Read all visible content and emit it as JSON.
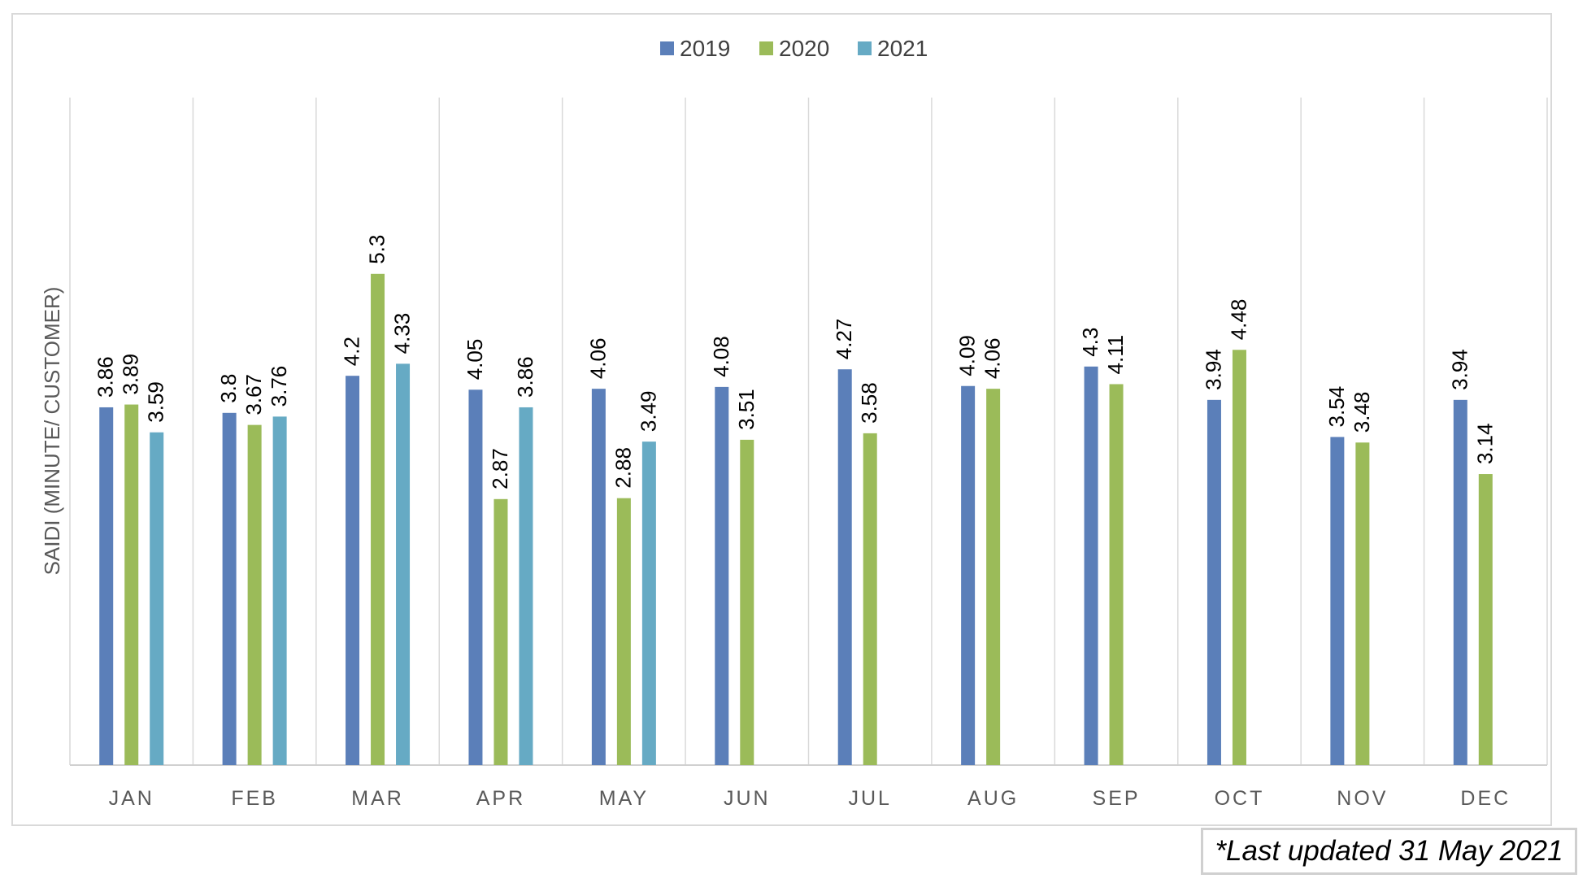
{
  "chart_data": {
    "type": "bar",
    "categories": [
      "JAN",
      "FEB",
      "MAR",
      "APR",
      "MAY",
      "JUN",
      "JUL",
      "AUG",
      "SEP",
      "OCT",
      "NOV",
      "DEC"
    ],
    "series": [
      {
        "name": "2019",
        "color": "#5b7fb9",
        "values": [
          3.86,
          3.8,
          4.2,
          4.05,
          4.06,
          4.08,
          4.27,
          4.09,
          4.3,
          3.94,
          3.54,
          3.94
        ]
      },
      {
        "name": "2020",
        "color": "#9bbb59",
        "values": [
          3.89,
          3.67,
          5.3,
          2.87,
          2.88,
          3.51,
          3.58,
          4.06,
          4.11,
          4.48,
          3.48,
          3.14
        ]
      },
      {
        "name": "2021",
        "color": "#66aac4",
        "values": [
          3.59,
          3.76,
          4.33,
          3.86,
          3.49,
          null,
          null,
          null,
          null,
          null,
          null,
          null
        ]
      }
    ],
    "ylabel": "SAIDI (MINUTE/ CUSTOMER)",
    "xlabel": "",
    "ylim": [
      0,
      6
    ],
    "grid": "vertical separators between categories",
    "legend": "top-center",
    "data_labels": true
  },
  "footnote": "*Last updated 31 May 2021"
}
